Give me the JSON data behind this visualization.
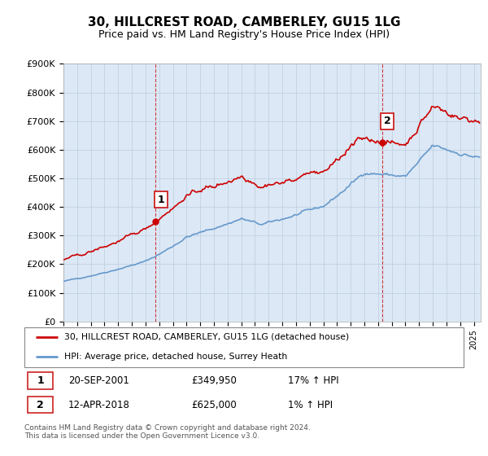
{
  "title": "30, HILLCREST ROAD, CAMBERLEY, GU15 1LG",
  "subtitle": "Price paid vs. HM Land Registry's House Price Index (HPI)",
  "legend_line1": "30, HILLCREST ROAD, CAMBERLEY, GU15 1LG (detached house)",
  "legend_line2": "HPI: Average price, detached house, Surrey Heath",
  "transaction1_date": "20-SEP-2001",
  "transaction1_price": "£349,950",
  "transaction1_hpi": "17% ↑ HPI",
  "transaction1_year": 2001.72,
  "transaction1_value": 349950,
  "transaction2_date": "12-APR-2018",
  "transaction2_price": "£625,000",
  "transaction2_hpi": "1% ↑ HPI",
  "transaction2_year": 2018.28,
  "transaction2_value": 625000,
  "footnote": "Contains HM Land Registry data © Crown copyright and database right 2024.\nThis data is licensed under the Open Government Licence v3.0.",
  "hpi_color": "#6699cc",
  "price_color": "#cc0000",
  "marker_color": "#cc0000",
  "vline_color": "#cc0000",
  "background_color": "#dce8f5",
  "ylim": [
    0,
    900000
  ],
  "xlim_start": 1995.0,
  "xlim_end": 2025.5
}
